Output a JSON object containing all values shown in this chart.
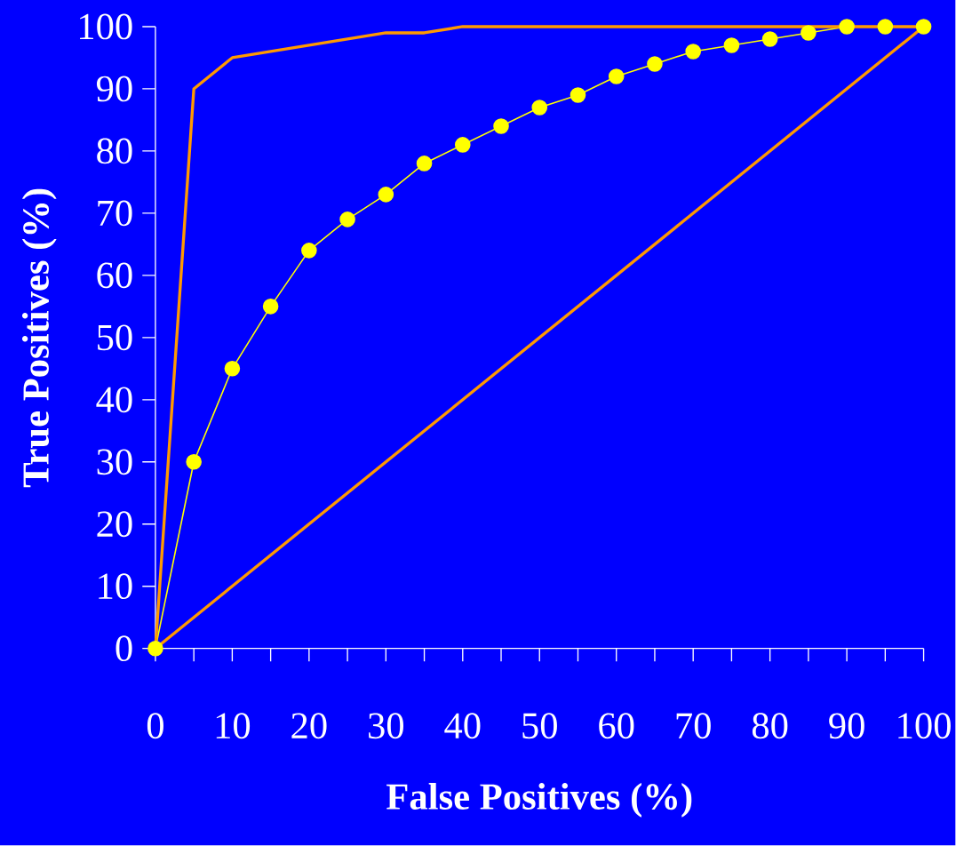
{
  "chart_data": {
    "type": "line",
    "xlabel": "False Positives (%)",
    "ylabel": "True Positives (%)",
    "xlim": [
      0,
      100
    ],
    "ylim": [
      0,
      100
    ],
    "xticks": [
      0,
      {
        "value": 5,
        "label": null
      },
      10,
      {
        "value": 15,
        "label": null
      },
      20,
      {
        "value": 25,
        "label": null
      },
      30,
      {
        "value": 35,
        "label": null
      },
      40,
      {
        "value": 45,
        "label": null
      },
      50,
      {
        "value": 55,
        "label": null
      },
      60,
      {
        "value": 65,
        "label": null
      },
      70,
      {
        "value": 75,
        "label": null
      },
      80,
      {
        "value": 85,
        "label": null
      },
      90,
      {
        "value": 95,
        "label": null
      },
      100
    ],
    "yticks": [
      0,
      10,
      20,
      30,
      40,
      50,
      60,
      70,
      80,
      90,
      100
    ],
    "grid": false,
    "line_style": "solid",
    "series": [
      {
        "color": "#ff9900",
        "marker": "none",
        "x": [
          0,
          100
        ],
        "values": [
          0,
          100
        ]
      },
      {
        "color": "#ffff00",
        "marker": "circle",
        "x": [
          0,
          5,
          10,
          15,
          20,
          25,
          30,
          35,
          40,
          45,
          50,
          55,
          60,
          65,
          70,
          75,
          80,
          85,
          90,
          95,
          100
        ],
        "values": [
          0,
          30,
          45,
          55,
          64,
          69,
          73,
          78,
          81,
          84,
          87,
          89,
          92,
          94,
          96,
          97,
          98,
          99,
          100,
          100,
          100
        ]
      },
      {
        "color": "#ff9900",
        "marker": "none",
        "x": [
          0,
          5,
          10,
          15,
          20,
          25,
          30,
          35,
          40,
          100
        ],
        "values": [
          0,
          90,
          95,
          96,
          97,
          98,
          99,
          99,
          100,
          100
        ]
      }
    ]
  }
}
